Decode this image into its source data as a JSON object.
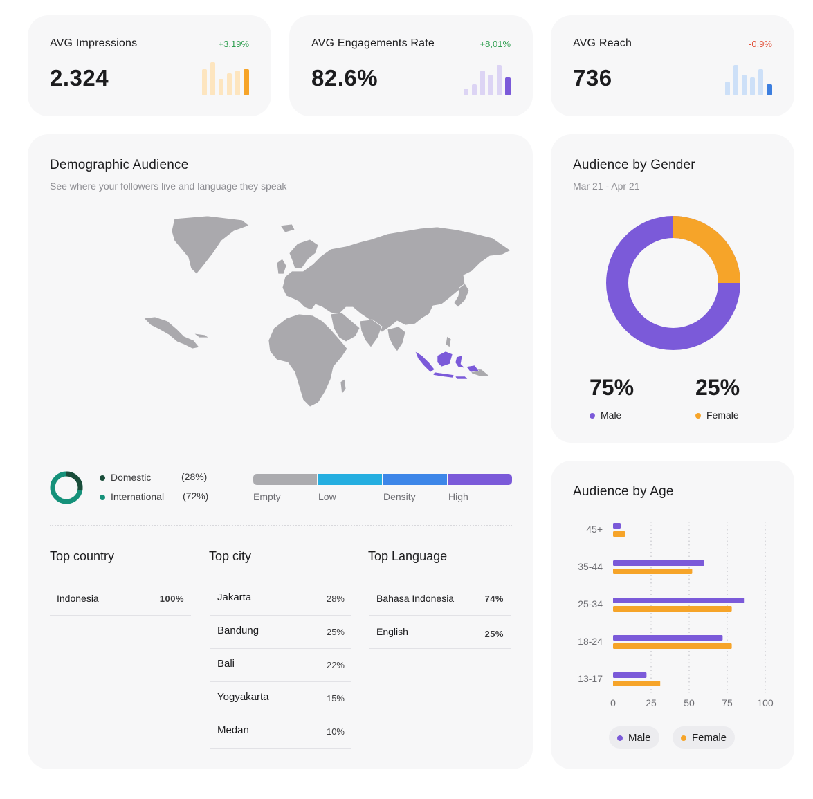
{
  "kpis": [
    {
      "label": "AVG Impressions",
      "change": "+3,19%",
      "change_color": "#2e9e4f",
      "value": "2.324",
      "spark_color": "#f6a429",
      "spark_light": "#fde5bf"
    },
    {
      "label": "AVG Engagements Rate",
      "change": "+8,01%",
      "change_color": "#2e9e4f",
      "value": "82.6%",
      "spark_color": "#7b5ad9",
      "spark_light": "#dcd4f4"
    },
    {
      "label": "AVG Reach",
      "change": "-0,9%",
      "change_color": "#e2523b",
      "value": "736",
      "spark_color": "#3d7fdf",
      "spark_light": "#cde0f8"
    }
  ],
  "demographic": {
    "title": "Demographic Audience",
    "subtitle": "See where your followers live and language they speak",
    "domestic": {
      "label": "Domestic",
      "pct": "(28%)",
      "value": 28,
      "color": "#1a4d3a"
    },
    "international": {
      "label": "International",
      "pct": "(72%)",
      "value": 72,
      "color": "#15917a"
    },
    "density": {
      "labels": [
        "Empty",
        "Low",
        "Density",
        "High"
      ],
      "colors": [
        "#ababaf",
        "#25aee0",
        "#3d86e8",
        "#7b5ad9"
      ]
    },
    "top_country": {
      "title": "Top country",
      "rows": [
        {
          "name": "Indonesia",
          "pct": "100%"
        }
      ]
    },
    "top_city": {
      "title": "Top city",
      "rows": [
        {
          "name": "Jakarta",
          "pct": "28%"
        },
        {
          "name": "Bandung",
          "pct": "25%"
        },
        {
          "name": "Bali",
          "pct": "22%"
        },
        {
          "name": "Yogyakarta",
          "pct": "15%"
        },
        {
          "name": "Medan",
          "pct": "10%"
        }
      ]
    },
    "top_language": {
      "title": "Top Language",
      "rows": [
        {
          "name": "Bahasa Indonesia",
          "pct": "74%"
        },
        {
          "name": "English",
          "pct": "25%"
        }
      ]
    },
    "map_colors": {
      "land": "#aaa9ad",
      "highlight": "#7b5ad9"
    }
  },
  "gender": {
    "title": "Audience by Gender",
    "date_range": "Mar 21 - Apr 21",
    "male": {
      "pct": "75%",
      "value": 75,
      "label": "Male",
      "color": "#7b5ad9"
    },
    "female": {
      "pct": "25%",
      "value": 25,
      "label": "Female",
      "color": "#f6a429"
    }
  },
  "age": {
    "title": "Audience by Age",
    "legend": {
      "male": "Male",
      "female": "Female"
    },
    "chart_data": {
      "type": "bar",
      "orientation": "horizontal",
      "categories": [
        "45+",
        "35-44",
        "25-34",
        "18-24",
        "13-17"
      ],
      "series": [
        {
          "name": "Male",
          "color": "#7b5ad9",
          "values": [
            5,
            60,
            86,
            72,
            22
          ]
        },
        {
          "name": "Female",
          "color": "#f6a429",
          "values": [
            8,
            52,
            78,
            78,
            31
          ]
        }
      ],
      "xlim": [
        0,
        100
      ],
      "xticks": [
        "0",
        "25",
        "50",
        "75",
        "100"
      ],
      "grid": true
    }
  }
}
